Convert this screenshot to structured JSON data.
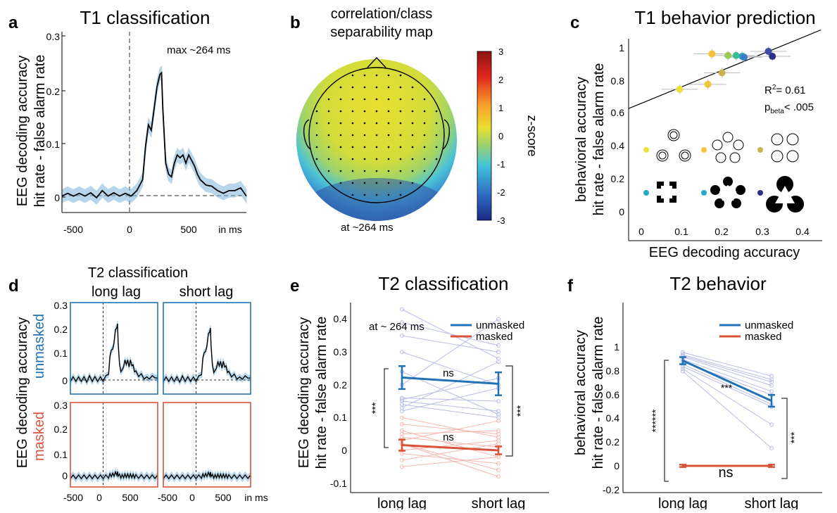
{
  "colors": {
    "mean_line": "#000000",
    "ci_band": "#7fb6da",
    "unmasked": "#2273b5",
    "masked": "#d8533a",
    "unmasked_light": "#b9bde6",
    "masked_light": "#f6b6ad",
    "axis": "#000000",
    "dashed": "#555555"
  },
  "panels": {
    "a": {
      "letter": "a",
      "title": "T1 classification",
      "ylabel1": "EEG decoding accuracy",
      "ylabel2": "hit rate - false alarm rate",
      "annotation": "max ~264 ms",
      "xunit": "in ms",
      "xticks": [
        "-500",
        "0",
        "500"
      ],
      "yticks": [
        "0",
        "0.1",
        "0.2",
        "0.3"
      ]
    },
    "b": {
      "letter": "b",
      "title1": "correlation/class",
      "title2": "separability map",
      "caption": "at ~264 ms",
      "colorbar_label": "z-score",
      "colorbar_ticks": [
        "3",
        "2",
        "1",
        "0",
        "-1",
        "-2",
        "-3"
      ]
    },
    "c": {
      "letter": "c",
      "title": "T1 behavior prediction",
      "ylabel1": "behavioral accuracy",
      "ylabel2": "hit rate - false alarm rate",
      "xlabel": "EEG decoding accuracy",
      "r2_prefix": "R",
      "r2_sup": "2",
      "r2_value": "= 0.61",
      "p_prefix": "p",
      "p_sub": "beta",
      "p_value": "< .005",
      "xticks": [
        "0",
        "0.1",
        "0.2",
        "0.3",
        "0.4"
      ],
      "yticks": [
        "0",
        "0.2",
        "0.4",
        "0.6",
        "0.8",
        "1"
      ]
    },
    "d": {
      "letter": "d",
      "title": "T2 classification",
      "col1": "long lag",
      "col2": "short lag",
      "row1": "unmasked",
      "row2": "masked",
      "ylabel": "EEG decoding accuracy",
      "xunit": "in ms",
      "xticks": [
        "-500",
        "0",
        "500"
      ],
      "yticks_top": [
        "0",
        "0.1",
        "0.2",
        "0.3"
      ],
      "yticks_bottom": [
        "0",
        "0.1",
        "0.2",
        "0.3"
      ]
    },
    "e": {
      "letter": "e",
      "title": "T2 classification",
      "ylabel1": "EEG decoding accuracy",
      "ylabel2": "hit rate - false alarm rate",
      "annotation": "at ~ 264 ms",
      "legend_unmasked": "unmasked",
      "legend_masked": "masked",
      "xticks": [
        "long lag",
        "short lag"
      ],
      "yticks": [
        "-0.1",
        "0",
        "0.1",
        "0.2",
        "0.3",
        "0.4"
      ],
      "sig_left": "***",
      "sig_right": "***",
      "ns_top": "ns",
      "ns_bottom": "ns"
    },
    "f": {
      "letter": "f",
      "title": "T2 behavior",
      "ylabel1": "behavioral accuracy",
      "ylabel2": "hit rate - false alarm rate",
      "legend_unmasked": "unmasked",
      "legend_masked": "masked",
      "xticks": [
        "long lag",
        "short lag"
      ],
      "yticks": [
        "-0.2",
        "0",
        "0.2",
        "0.4",
        "0.6",
        "0.8",
        "1"
      ],
      "sig_left": "******",
      "sig_mid": "***",
      "sig_right": "***",
      "ns": "ns"
    }
  },
  "chart_data": [
    {
      "panel": "a",
      "type": "line",
      "xlim": [
        -600,
        1000
      ],
      "ylim": [
        -0.03,
        0.3
      ],
      "x": [
        -600,
        -550,
        -500,
        -450,
        -400,
        -350,
        -300,
        -250,
        -200,
        -150,
        -100,
        -50,
        0,
        50,
        100,
        125,
        150,
        175,
        200,
        225,
        250,
        264,
        275,
        300,
        325,
        350,
        375,
        400,
        425,
        450,
        475,
        500,
        525,
        550,
        575,
        600,
        650,
        700,
        750,
        800,
        850,
        900,
        950,
        1000
      ],
      "series": [
        {
          "values": [
            0.0,
            0.005,
            0.0,
            0.005,
            0.0,
            0.006,
            -0.003,
            0.01,
            0.0,
            0.006,
            0.0,
            0.005,
            0.0,
            0.01,
            0.03,
            0.09,
            0.13,
            0.12,
            0.16,
            0.2,
            0.222,
            0.225,
            0.16,
            0.06,
            0.04,
            0.035,
            0.06,
            0.075,
            0.07,
            0.075,
            0.06,
            0.075,
            0.065,
            0.055,
            0.04,
            0.03,
            0.02,
            0.018,
            0.01,
            0.005,
            0.01,
            0.01,
            0.015,
            0.0
          ]
        }
      ]
    },
    {
      "panel": "c",
      "type": "scatter",
      "xlim": [
        -0.02,
        0.45
      ],
      "ylim": [
        -0.03,
        1.05
      ],
      "fit_line": {
        "intercept": 0.655,
        "slope": 1.0
      },
      "points": [
        {
          "x": 0.095,
          "y": 0.74,
          "color": "#e9e13a"
        },
        {
          "x": 0.165,
          "y": 0.77,
          "color": "#f2c43b"
        },
        {
          "x": 0.2,
          "y": 0.84,
          "color": "#c9b451"
        },
        {
          "x": 0.175,
          "y": 0.955,
          "color": "#f6c235"
        },
        {
          "x": 0.215,
          "y": 0.945,
          "color": "#9ccb53"
        },
        {
          "x": 0.235,
          "y": 0.945,
          "color": "#3bbb93"
        },
        {
          "x": 0.25,
          "y": 0.94,
          "color": "#2aa7c9"
        },
        {
          "x": 0.255,
          "y": 0.935,
          "color": "#3a7fc6"
        },
        {
          "x": 0.315,
          "y": 0.97,
          "color": "#3b4ba6"
        },
        {
          "x": 0.325,
          "y": 0.94,
          "color": "#2b2f86"
        }
      ]
    },
    {
      "panel": "e",
      "type": "line",
      "categories": [
        "long lag",
        "short lag"
      ],
      "ylim": [
        -0.1,
        0.45
      ],
      "series": [
        {
          "name": "unmasked",
          "values": [
            0.222,
            0.203
          ],
          "err": [
            0.035,
            0.035
          ]
        },
        {
          "name": "masked",
          "values": [
            0.016,
            0.0
          ],
          "err": [
            0.017,
            0.012
          ]
        }
      ],
      "subjects_unmasked": [
        [
          0.43,
          0.28
        ],
        [
          0.39,
          0.32
        ],
        [
          0.35,
          0.3
        ],
        [
          0.3,
          0.2
        ],
        [
          0.24,
          0.11
        ],
        [
          0.2,
          0.4
        ],
        [
          0.16,
          0.15
        ],
        [
          0.155,
          0.22
        ],
        [
          0.15,
          0.12
        ],
        [
          0.14,
          0.1
        ],
        [
          0.13,
          0.27
        ],
        [
          0.12,
          0.19
        ]
      ],
      "subjects_masked": [
        [
          0.1,
          0.04
        ],
        [
          0.08,
          0.05
        ],
        [
          0.06,
          -0.02
        ],
        [
          0.04,
          0.01
        ],
        [
          0.03,
          0.09
        ],
        [
          0.02,
          -0.06
        ],
        [
          0.0,
          0.03
        ],
        [
          -0.01,
          -0.04
        ],
        [
          -0.03,
          0.02
        ],
        [
          -0.05,
          -0.02
        ],
        [
          0.05,
          0.06
        ],
        [
          0.02,
          -0.08
        ]
      ]
    },
    {
      "panel": "f",
      "type": "line",
      "categories": [
        "long lag",
        "short lag"
      ],
      "ylim": [
        -0.2,
        1.15
      ],
      "series": [
        {
          "name": "unmasked",
          "values": [
            0.89,
            0.55
          ],
          "err": [
            0.03,
            0.05
          ]
        },
        {
          "name": "masked",
          "values": [
            0.0,
            0.0
          ],
          "err": [
            0.01,
            0.01
          ]
        }
      ],
      "subjects_unmasked": [
        [
          0.96,
          0.76
        ],
        [
          0.94,
          0.73
        ],
        [
          0.92,
          0.68
        ],
        [
          0.9,
          0.63
        ],
        [
          0.88,
          0.6
        ],
        [
          0.86,
          0.52
        ],
        [
          0.84,
          0.5
        ],
        [
          0.82,
          0.35
        ],
        [
          0.8,
          0.15
        ],
        [
          0.93,
          0.71
        ]
      ]
    }
  ]
}
